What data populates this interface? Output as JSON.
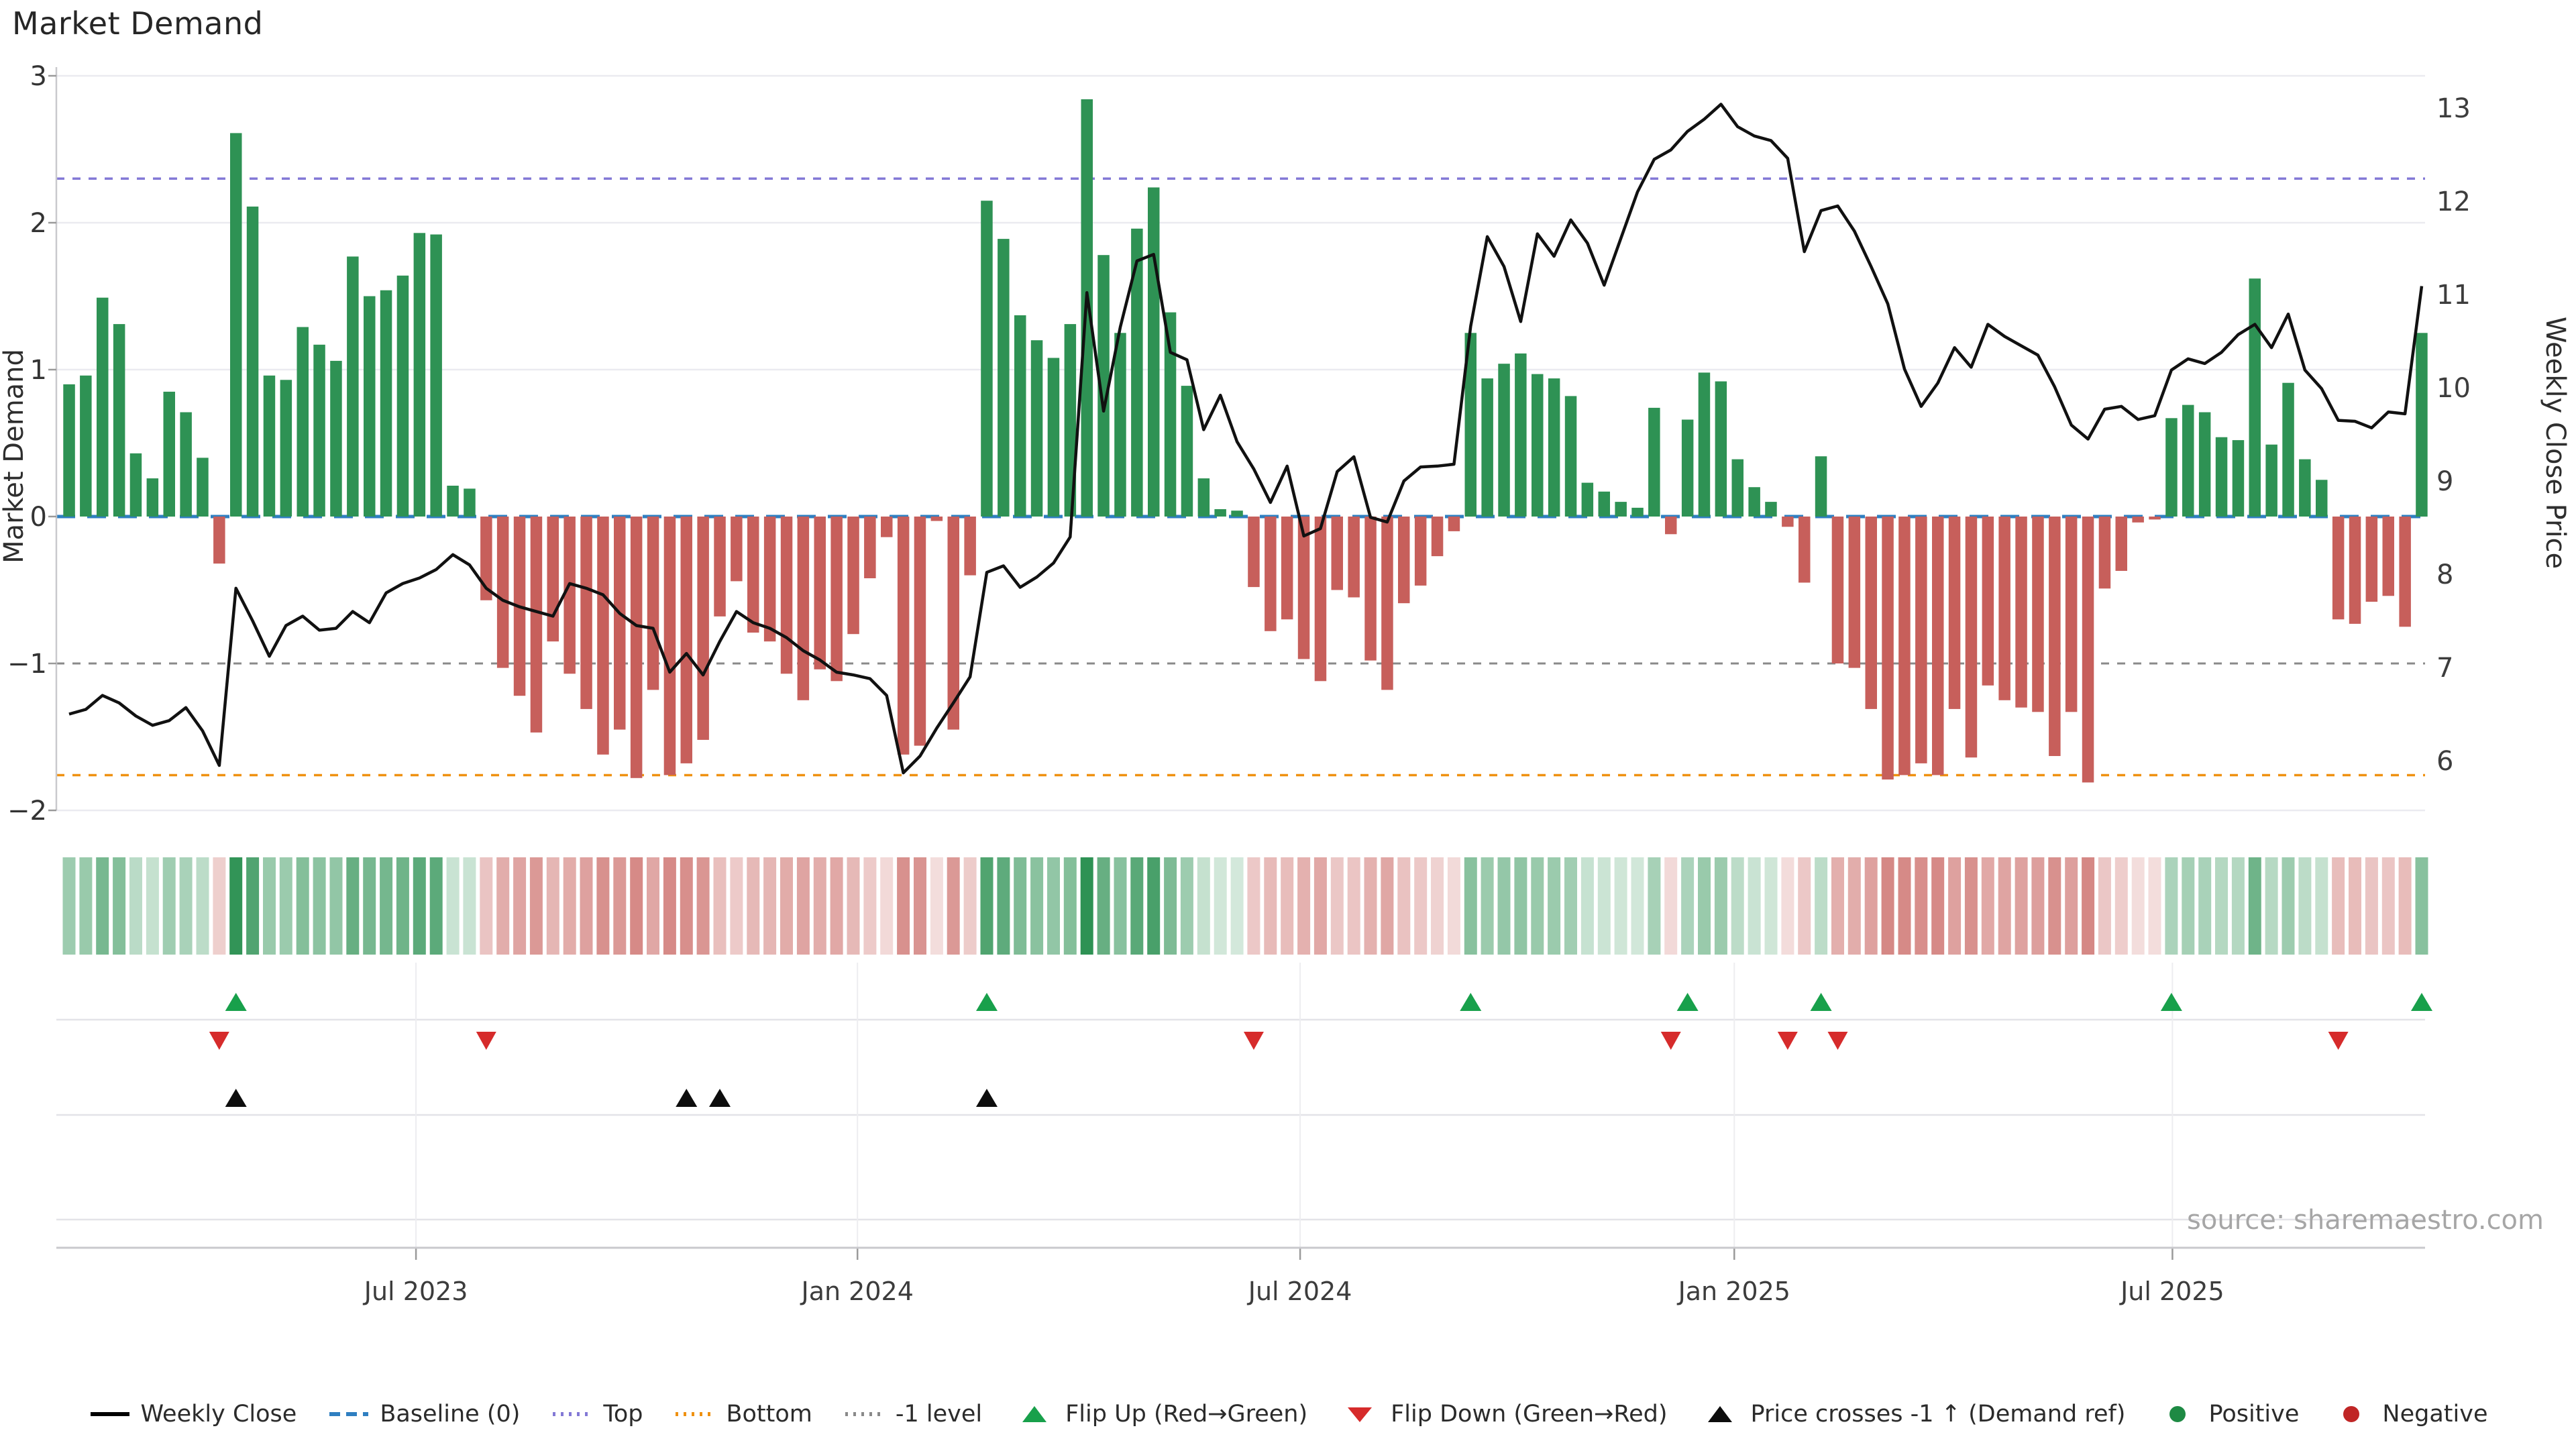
{
  "title": "Market Demand",
  "source": "source: sharemaestro.com",
  "axes": {
    "left": {
      "title": "Market Demand",
      "tick_labels": [
        "3",
        "2",
        "1",
        "0",
        "−1",
        "−2"
      ],
      "tick_values": [
        3,
        2,
        1,
        0,
        -1,
        -2
      ]
    },
    "right": {
      "title": "Weekly Close Price",
      "tick_labels": [
        "13",
        "12",
        "11",
        "10",
        "9",
        "8",
        "7",
        "6"
      ],
      "tick_values": [
        13,
        12,
        11,
        10,
        9,
        8,
        7,
        6
      ]
    },
    "x": {
      "tick_labels": [
        "Jul 2023",
        "Jan 2024",
        "Jul 2024",
        "Jan 2025",
        "Jul 2025"
      ],
      "tick_weeks": [
        20.79,
        47.25,
        73.78,
        99.8,
        126.06
      ]
    }
  },
  "colors": {
    "positive_bar": "#2e9254",
    "negative_bar": "#c75f5b",
    "price_line": "#111111",
    "baseline": "#2f7fc1",
    "top_level": "#8379d6",
    "bottom_level": "#ef9111",
    "minus_one_level": "#8a8a8a",
    "grid": "#ebebf0",
    "panel_grid": "#e3e3e8",
    "axis_spine": "#c9c9cd",
    "flip_up": "#18a04b",
    "flip_down": "#d62b2b",
    "price_cross": "#0d0d0d",
    "tick_text": "#333333",
    "source_text": "#a6a6a6"
  },
  "chart_data": {
    "type": "bar+line",
    "title": "Market Demand",
    "xlabel": "",
    "ylabel_left": "Market Demand",
    "ylabel_right": "Weekly Close Price",
    "ylim_demand": [
      -2,
      3
    ],
    "ylim_price": [
      6,
      13
    ],
    "levels": {
      "baseline": 0,
      "top": 2.3,
      "bottom": -1.76,
      "minus_one": -1
    },
    "legend_position": "bottom-center",
    "grid": "horizontal-light",
    "weeks": 142,
    "series": [
      {
        "name": "Market Demand (weekly bars)",
        "values": [
          0.9,
          0.96,
          1.49,
          1.31,
          0.43,
          0.26,
          0.85,
          0.71,
          0.4,
          -0.32,
          2.61,
          2.11,
          0.96,
          0.93,
          1.29,
          1.17,
          1.06,
          1.77,
          1.5,
          1.54,
          1.64,
          1.93,
          1.92,
          0.21,
          0.19,
          -0.57,
          -1.03,
          -1.22,
          -1.47,
          -0.85,
          -1.07,
          -1.31,
          -1.62,
          -1.45,
          -1.78,
          -1.18,
          -1.76,
          -1.68,
          -1.52,
          -0.68,
          -0.44,
          -0.79,
          -0.85,
          -1.07,
          -1.25,
          -1.04,
          -1.12,
          -0.8,
          -0.42,
          -0.14,
          -1.62,
          -1.56,
          -0.03,
          -1.45,
          -0.4,
          2.15,
          1.89,
          1.37,
          1.2,
          1.08,
          1.31,
          2.84,
          1.78,
          1.25,
          1.96,
          2.24,
          1.39,
          0.89,
          0.26,
          0.05,
          0.04,
          -0.48,
          -0.78,
          -0.7,
          -0.97,
          -1.12,
          -0.5,
          -0.55,
          -0.98,
          -1.18,
          -0.59,
          -0.47,
          -0.27,
          -0.1,
          1.25,
          0.94,
          1.04,
          1.11,
          0.97,
          0.94,
          0.82,
          0.23,
          0.17,
          0.1,
          0.06,
          0.74,
          -0.12,
          0.66,
          0.98,
          0.92,
          0.39,
          0.2,
          0.1,
          -0.07,
          -0.45,
          0.41,
          -1.0,
          -1.03,
          -1.31,
          -1.79,
          -1.76,
          -1.68,
          -1.76,
          -1.31,
          -1.64,
          -1.15,
          -1.25,
          -1.3,
          -1.33,
          -1.63,
          -1.33,
          -1.81,
          -0.49,
          -0.37,
          -0.04,
          -0.02,
          0.67,
          0.76,
          0.71,
          0.54,
          0.52,
          1.62,
          0.49,
          0.91,
          0.39,
          0.25,
          -0.7,
          -0.73,
          -0.58,
          -0.54,
          -0.75,
          1.25
        ]
      },
      {
        "name": "Weekly Close",
        "values": [
          6.5,
          6.55,
          6.7,
          6.62,
          6.48,
          6.38,
          6.43,
          6.57,
          6.32,
          5.95,
          7.85,
          7.5,
          7.12,
          7.45,
          7.55,
          7.4,
          7.42,
          7.6,
          7.48,
          7.8,
          7.9,
          7.96,
          8.05,
          8.21,
          8.1,
          7.85,
          7.72,
          7.65,
          7.6,
          7.55,
          7.9,
          7.85,
          7.78,
          7.58,
          7.45,
          7.42,
          6.95,
          7.15,
          6.92,
          7.28,
          7.6,
          7.48,
          7.42,
          7.32,
          7.18,
          7.08,
          6.95,
          6.92,
          6.88,
          6.7,
          5.87,
          6.05,
          6.35,
          6.62,
          6.9,
          8.02,
          8.09,
          7.86,
          7.97,
          8.12,
          8.4,
          11.02,
          9.75,
          10.65,
          11.36,
          11.43,
          10.38,
          10.3,
          9.55,
          9.92,
          9.42,
          9.13,
          8.77,
          9.16,
          8.41,
          8.49,
          9.1,
          9.26,
          8.61,
          8.56,
          9.0,
          9.15,
          9.16,
          9.18,
          10.66,
          11.62,
          11.3,
          10.71,
          11.65,
          11.41,
          11.8,
          11.55,
          11.1,
          11.6,
          12.1,
          12.45,
          12.55,
          12.75,
          12.88,
          13.04,
          12.8,
          12.7,
          12.65,
          12.46,
          11.46,
          11.9,
          11.95,
          11.68,
          11.3,
          10.9,
          10.2,
          9.8,
          10.05,
          10.43,
          10.22,
          10.68,
          10.55,
          10.45,
          10.35,
          10.01,
          9.6,
          9.45,
          9.77,
          9.8,
          9.66,
          9.7,
          10.19,
          10.31,
          10.26,
          10.38,
          10.57,
          10.68,
          10.43,
          10.79,
          10.19,
          9.99,
          9.65,
          9.64,
          9.57,
          9.74,
          9.72,
          11.09
        ]
      }
    ],
    "markers": {
      "flip_up_weeks": [
        10,
        55,
        84,
        97,
        105,
        126,
        141
      ],
      "flip_down_weeks": [
        9,
        25,
        71,
        96,
        103,
        106,
        136
      ],
      "price_cross_weeks": [
        10,
        37,
        39,
        55
      ]
    },
    "heatmap": "same sign/intensity as Market Demand bars"
  },
  "legend": [
    {
      "label": "Weekly Close",
      "type": "solid-line",
      "color": "#000000"
    },
    {
      "label": "Baseline (0)",
      "type": "dashed-line",
      "color": "#2f7fc1"
    },
    {
      "label": "Top",
      "type": "dotted-line",
      "color": "#8379d6"
    },
    {
      "label": "Bottom",
      "type": "dotted-line",
      "color": "#ef9111"
    },
    {
      "label": "-1 level",
      "type": "dotted-line",
      "color": "#8a8a8a"
    },
    {
      "label": "Flip Up (Red→Green)",
      "type": "triangle-up",
      "color": "#18a04b"
    },
    {
      "label": "Flip Down (Green→Red)",
      "type": "triangle-down",
      "color": "#d62b2b"
    },
    {
      "label": "Price crosses -1 ↑ (Demand ref)",
      "type": "triangle-up",
      "color": "#0d0d0d"
    },
    {
      "label": "Positive",
      "type": "circle",
      "color": "#1e8a44"
    },
    {
      "label": "Negative",
      "type": "circle",
      "color": "#c02626"
    }
  ]
}
